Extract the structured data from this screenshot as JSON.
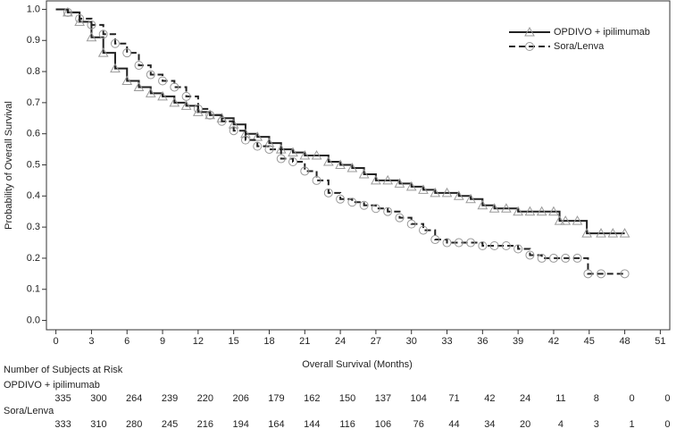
{
  "chart_data": {
    "type": "line",
    "step": true,
    "xlabel": "Overall Survival (Months)",
    "ylabel": "Probability of Overall Survival",
    "xlim": [
      -0.8,
      51.8
    ],
    "ylim": [
      -0.03,
      1.03
    ],
    "xticks": [
      0,
      3,
      6,
      9,
      12,
      15,
      18,
      21,
      24,
      27,
      30,
      33,
      36,
      39,
      42,
      45,
      48,
      51
    ],
    "yticks": [
      {
        "value": 0,
        "label": "0.0"
      },
      0.1,
      0.2,
      0.3,
      0.4,
      0.5,
      0.6,
      0.7,
      0.8,
      0.9,
      {
        "value": 1,
        "label": "1.0"
      }
    ],
    "legend": "upper right",
    "series": [
      {
        "name": "OPDIVO + ipilimumab",
        "color": "#222222",
        "dash": "solid",
        "marker": "triangle",
        "x": [
          0,
          1,
          2,
          3,
          4,
          5,
          6,
          7,
          8,
          9,
          10,
          11,
          12,
          13,
          14,
          15,
          16,
          17,
          18,
          19,
          20,
          21,
          22,
          23,
          24,
          25,
          26,
          27,
          28,
          29,
          30,
          31,
          32,
          33,
          34,
          35,
          36,
          37,
          38,
          39,
          40,
          41,
          42,
          42.5,
          43,
          44,
          44.8,
          46,
          47,
          48
        ],
        "values": [
          1.0,
          0.99,
          0.96,
          0.91,
          0.86,
          0.81,
          0.77,
          0.75,
          0.73,
          0.72,
          0.7,
          0.69,
          0.67,
          0.66,
          0.65,
          0.63,
          0.6,
          0.59,
          0.57,
          0.55,
          0.54,
          0.53,
          0.53,
          0.51,
          0.5,
          0.49,
          0.47,
          0.45,
          0.45,
          0.44,
          0.43,
          0.42,
          0.41,
          0.41,
          0.4,
          0.39,
          0.37,
          0.36,
          0.36,
          0.35,
          0.35,
          0.35,
          0.35,
          0.32,
          0.32,
          0.32,
          0.28,
          0.28,
          0.28,
          0.28
        ]
      },
      {
        "name": "Sora/Lenva",
        "color": "#222222",
        "dash": "dashed",
        "marker": "circle",
        "x": [
          0,
          1,
          2,
          3,
          4,
          5,
          6,
          7,
          8,
          9,
          10,
          11,
          12,
          13,
          14,
          15,
          16,
          17,
          18,
          19,
          20,
          21,
          22,
          23,
          24,
          25,
          26,
          27,
          28,
          29,
          30,
          31,
          32,
          33,
          34,
          35,
          36,
          37,
          38,
          39,
          40,
          41,
          42,
          43,
          44,
          44.9,
          46,
          48
        ],
        "values": [
          1.0,
          0.99,
          0.97,
          0.95,
          0.92,
          0.89,
          0.86,
          0.82,
          0.79,
          0.77,
          0.75,
          0.72,
          0.68,
          0.66,
          0.64,
          0.61,
          0.58,
          0.56,
          0.55,
          0.52,
          0.51,
          0.48,
          0.45,
          0.41,
          0.39,
          0.38,
          0.37,
          0.36,
          0.35,
          0.33,
          0.31,
          0.29,
          0.26,
          0.25,
          0.25,
          0.25,
          0.24,
          0.24,
          0.24,
          0.23,
          0.21,
          0.2,
          0.2,
          0.2,
          0.2,
          0.15,
          0.15,
          0.15
        ]
      }
    ],
    "risk_table": {
      "title": "Number of Subjects at Risk",
      "groups": [
        {
          "name": "OPDIVO + ipilimumab",
          "counts": [
            335,
            300,
            264,
            239,
            220,
            206,
            179,
            162,
            150,
            137,
            104,
            71,
            42,
            24,
            11,
            8,
            0,
            0
          ]
        },
        {
          "name": "Sora/Lenva",
          "counts": [
            333,
            310,
            280,
            245,
            216,
            194,
            164,
            144,
            116,
            106,
            76,
            44,
            34,
            20,
            4,
            3,
            1,
            0
          ]
        }
      ]
    }
  }
}
